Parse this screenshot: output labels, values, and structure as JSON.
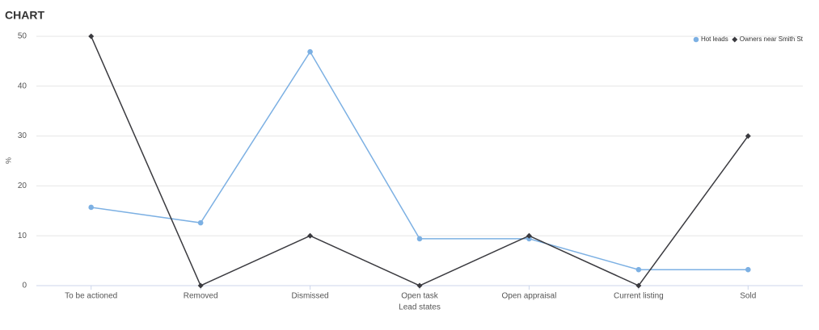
{
  "chart_data": {
    "type": "line",
    "title": "CHART",
    "x_label": "Lead states",
    "y_label": "%",
    "categories": [
      "To be actioned",
      "Removed",
      "Dismissed",
      "Open task",
      "Open appraisal",
      "Current listing",
      "Sold"
    ],
    "series": [
      {
        "name": "Hot leads",
        "color": "#7cb0e3",
        "marker": "circle",
        "values": [
          15.7,
          12.6,
          46.9,
          9.4,
          9.4,
          3.2,
          3.2
        ]
      },
      {
        "name": "Owners near Smith St",
        "color": "#3a3a3f",
        "marker": "diamond",
        "values": [
          50,
          0,
          10,
          0,
          10,
          0,
          30
        ]
      }
    ],
    "ylim": [
      0,
      50
    ],
    "yticks": [
      0,
      10,
      20,
      30,
      40,
      50
    ],
    "grid": true,
    "legend": "top-right"
  }
}
